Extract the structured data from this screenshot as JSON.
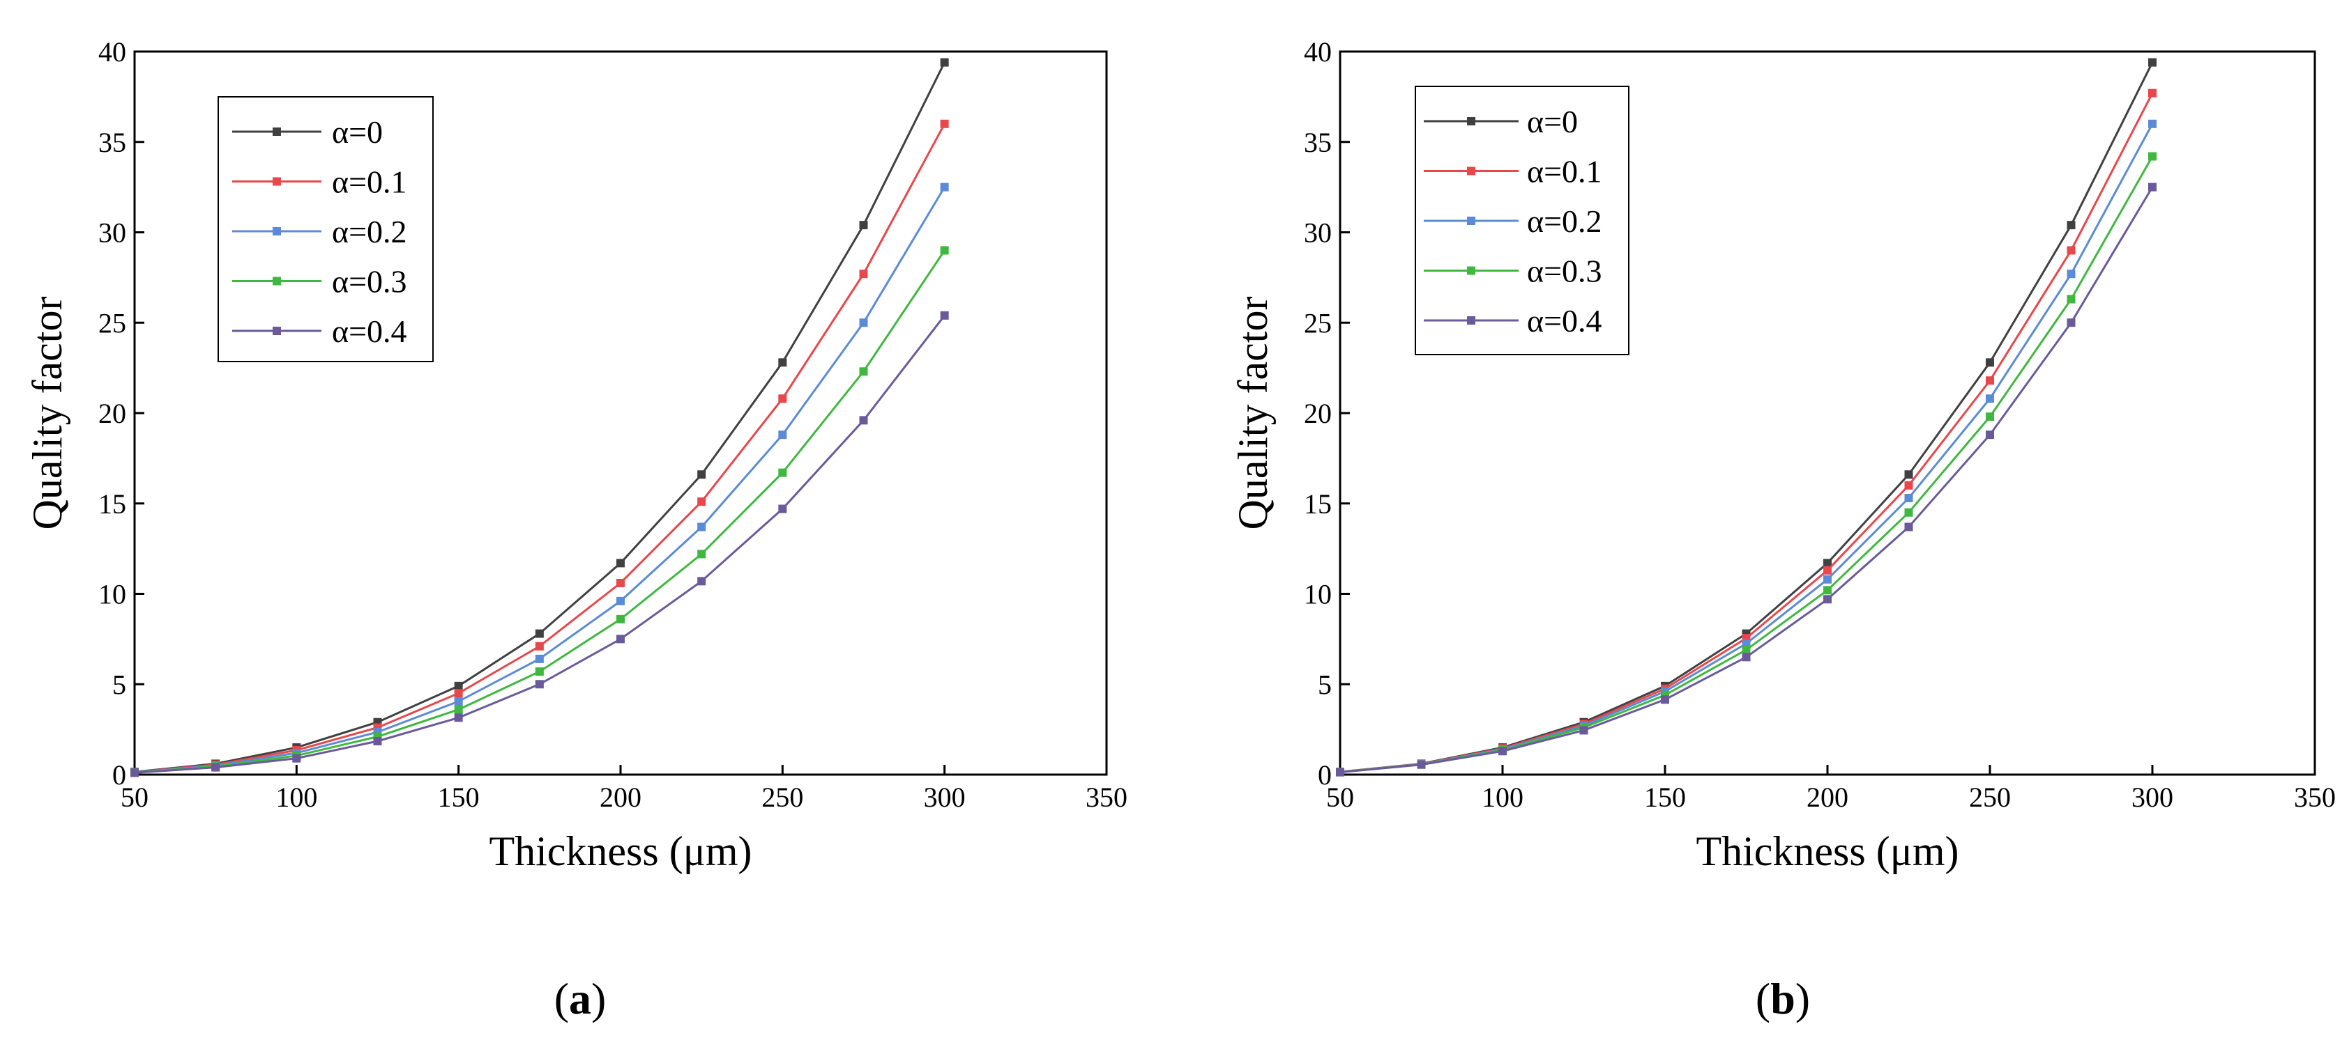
{
  "chart_data": [
    {
      "type": "line",
      "panel_label": "a",
      "panel_label_open": "(",
      "panel_label_close": ")",
      "xlabel": "Thickness (μm)",
      "ylabel": "Quality factor",
      "xlim": [
        50,
        350
      ],
      "ylim": [
        0,
        40
      ],
      "xticks": [
        50,
        100,
        150,
        200,
        250,
        300,
        350
      ],
      "yticks": [
        0,
        5,
        10,
        15,
        20,
        25,
        30,
        35,
        40
      ],
      "legend_position": "top-left",
      "x": [
        50,
        75,
        100,
        125,
        150,
        175,
        200,
        225,
        250,
        275,
        300
      ],
      "series": [
        {
          "name": "α=0",
          "color": "#404040",
          "values": [
            0.15,
            0.6,
            1.5,
            2.9,
            4.9,
            7.8,
            11.7,
            16.6,
            22.8,
            30.4,
            39.4
          ]
        },
        {
          "name": "α=0.1",
          "color": "#e8474b",
          "values": [
            0.13,
            0.55,
            1.35,
            2.6,
            4.5,
            7.1,
            10.6,
            15.1,
            20.8,
            27.7,
            36.0
          ]
        },
        {
          "name": "α=0.2",
          "color": "#5b8bd6",
          "values": [
            0.12,
            0.5,
            1.2,
            2.35,
            4.05,
            6.4,
            9.6,
            13.7,
            18.8,
            25.0,
            32.5
          ]
        },
        {
          "name": "α=0.3",
          "color": "#3fb83f",
          "values": [
            0.11,
            0.45,
            1.05,
            2.1,
            3.6,
            5.7,
            8.6,
            12.2,
            16.7,
            22.3,
            29.0
          ]
        },
        {
          "name": "α=0.4",
          "color": "#6a5a9a",
          "values": [
            0.1,
            0.4,
            0.9,
            1.85,
            3.15,
            5.0,
            7.5,
            10.7,
            14.7,
            19.6,
            25.4
          ]
        }
      ]
    },
    {
      "type": "line",
      "panel_label": "b",
      "panel_label_open": "(",
      "panel_label_close": ")",
      "xlabel": "Thickness (μm)",
      "ylabel": "Quality factor",
      "xlim": [
        50,
        350
      ],
      "ylim": [
        0,
        40
      ],
      "xticks": [
        50,
        100,
        150,
        200,
        250,
        300,
        350
      ],
      "yticks": [
        0,
        5,
        10,
        15,
        20,
        25,
        30,
        35,
        40
      ],
      "legend_position": "top-left",
      "x": [
        50,
        75,
        100,
        125,
        150,
        175,
        200,
        225,
        250,
        275,
        300
      ],
      "series": [
        {
          "name": "α=0",
          "color": "#404040",
          "values": [
            0.15,
            0.6,
            1.5,
            2.9,
            4.9,
            7.8,
            11.7,
            16.6,
            22.8,
            30.4,
            39.4
          ]
        },
        {
          "name": "α=0.1",
          "color": "#e8474b",
          "values": [
            0.15,
            0.58,
            1.45,
            2.8,
            4.75,
            7.55,
            11.3,
            16.0,
            21.8,
            29.0,
            37.7
          ]
        },
        {
          "name": "α=0.2",
          "color": "#5b8bd6",
          "values": [
            0.14,
            0.57,
            1.4,
            2.7,
            4.6,
            7.25,
            10.8,
            15.3,
            20.8,
            27.7,
            36.0
          ]
        },
        {
          "name": "α=0.3",
          "color": "#3fb83f",
          "values": [
            0.14,
            0.56,
            1.35,
            2.6,
            4.4,
            6.9,
            10.2,
            14.5,
            19.8,
            26.3,
            34.2
          ]
        },
        {
          "name": "α=0.4",
          "color": "#6a5a9a",
          "values": [
            0.13,
            0.55,
            1.3,
            2.45,
            4.15,
            6.5,
            9.7,
            13.7,
            18.8,
            25.0,
            32.5
          ]
        }
      ]
    }
  ]
}
